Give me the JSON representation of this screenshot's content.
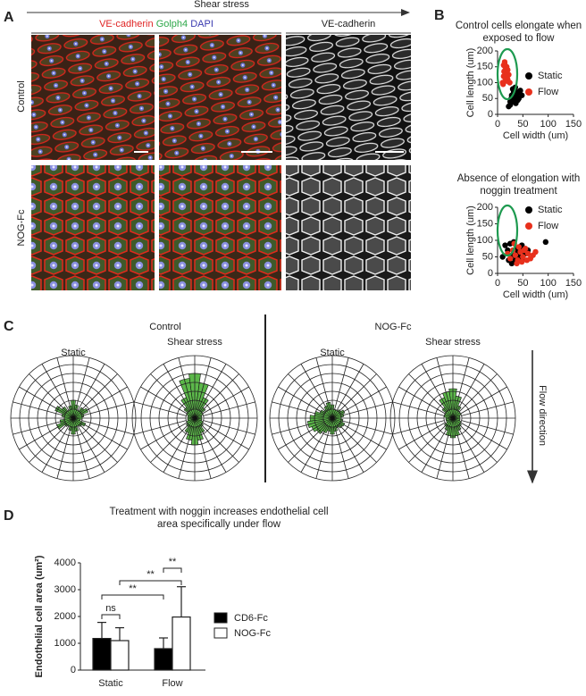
{
  "panel_labels": [
    "A",
    "B",
    "C",
    "D"
  ],
  "panel_a": {
    "header": "Shear stress",
    "stain_labels": [
      {
        "text": "VE-cadherin",
        "color": "#e02424"
      },
      {
        "text": "Golph4",
        "color": "#2ea84a"
      },
      {
        "text": "DAPI",
        "color": "#3a3ab0"
      }
    ],
    "gray_label": "VE-cadherin",
    "rows": [
      "Control",
      "NOG-Fc"
    ]
  },
  "panel_c": {
    "groups": [
      "Control",
      "NOG-Fc"
    ],
    "flow_label": "Flow direction"
  },
  "chart_data": [
    {
      "type": "rose",
      "title": "Static",
      "color": "#5cb84a",
      "values": [
        2,
        1.5,
        1,
        1.5,
        1.8,
        1.2,
        1,
        0.8,
        1.5,
        1.2,
        1,
        1.5,
        1.8,
        1.4,
        1,
        1.2,
        2,
        1.5,
        1,
        1.3,
        2.2,
        1.6,
        1,
        1.4
      ]
    },
    {
      "type": "rose",
      "title": "Shear stress",
      "color": "#5cb84a",
      "values": [
        5,
        4,
        2.5,
        1.5,
        1,
        0.8,
        0.8,
        0.8,
        1,
        1.2,
        1.8,
        2.5,
        3,
        2.5,
        1.8,
        1.2,
        1,
        0.8,
        0.8,
        0.8,
        1,
        1.5,
        2.5,
        4.5
      ]
    },
    {
      "type": "rose",
      "title": "Static",
      "color": "#5cb84a",
      "values": [
        1.5,
        1,
        1,
        1.2,
        1.5,
        1.3,
        1,
        1.2,
        1.5,
        1.4,
        1.2,
        1.5,
        1.8,
        1.5,
        1.8,
        2.2,
        2.5,
        2.8,
        2.5,
        2,
        1.5,
        1.2,
        1.5,
        1.8
      ]
    },
    {
      "type": "rose",
      "title": "Shear stress",
      "color": "#5cb84a",
      "values": [
        3.3,
        2.5,
        1.5,
        1,
        1,
        0.8,
        0.8,
        0.8,
        1,
        1.2,
        1.5,
        2,
        2.2,
        2,
        1.5,
        1.2,
        0.8,
        0.8,
        0.8,
        1,
        1,
        1.5,
        2.5,
        3
      ]
    },
    {
      "type": "scatter",
      "title": "Control cells elongate when exposed to flow",
      "x_label": "Cell width (um)",
      "y_label": "Cell length (um)",
      "xlim": [
        0,
        150
      ],
      "ylim": [
        0,
        200
      ],
      "xticks": [
        0,
        50,
        100,
        150
      ],
      "yticks": [
        0,
        50,
        100,
        150,
        200
      ],
      "legend": "right",
      "series": [
        {
          "name": "Static",
          "color": "#000000",
          "x": [
            25,
            30,
            35,
            40,
            28,
            33,
            45,
            38,
            22,
            30,
            42,
            36,
            27,
            48,
            32,
            40,
            35,
            25
          ],
          "values": [
            30,
            45,
            55,
            70,
            60,
            40,
            75,
            65,
            25,
            80,
            50,
            35,
            50,
            60,
            70,
            45,
            85,
            40
          ]
        },
        {
          "name": "Flow",
          "color": "#e8301c",
          "x": [
            10,
            12,
            15,
            18,
            20,
            14,
            16,
            22,
            11,
            13,
            17,
            19,
            15,
            12,
            20,
            24,
            18,
            14
          ],
          "values": [
            100,
            120,
            140,
            150,
            110,
            160,
            130,
            125,
            95,
            135,
            145,
            105,
            115,
            155,
            140,
            100,
            120,
            165
          ]
        }
      ]
    },
    {
      "type": "scatter",
      "title": "Absence of elongation with noggin treatment",
      "x_label": "Cell width (um)",
      "y_label": "Cell length (um)",
      "xlim": [
        0,
        150
      ],
      "ylim": [
        0,
        200
      ],
      "xticks": [
        0,
        50,
        100,
        150
      ],
      "yticks": [
        0,
        50,
        100,
        150,
        200
      ],
      "legend": "upper right",
      "series": [
        {
          "name": "Static",
          "color": "#000000",
          "x": [
            10,
            20,
            25,
            30,
            35,
            40,
            45,
            50,
            55,
            28,
            32,
            38,
            42,
            22,
            48,
            60,
            95,
            15
          ],
          "values": [
            50,
            70,
            90,
            55,
            40,
            65,
            80,
            45,
            60,
            30,
            95,
            75,
            50,
            40,
            85,
            70,
            95,
            85
          ]
        },
        {
          "name": "Flow",
          "color": "#e8301c",
          "x": [
            20,
            25,
            30,
            35,
            40,
            45,
            50,
            55,
            60,
            65,
            70,
            38,
            42,
            48,
            52,
            33,
            58,
            75
          ],
          "values": [
            60,
            45,
            70,
            55,
            40,
            65,
            50,
            75,
            60,
            45,
            55,
            30,
            80,
            35,
            70,
            90,
            40,
            65
          ]
        }
      ]
    },
    {
      "type": "bar",
      "title": "Treatment with noggin increases endothelial cell area specifically under flow",
      "y_label": "Endothelial cell area (um²)",
      "categories": [
        "Static",
        "Flow"
      ],
      "ylim": [
        0,
        4000
      ],
      "yticks": [
        0,
        1000,
        2000,
        3000,
        4000
      ],
      "series": [
        {
          "name": "CD6-Fc",
          "color": "#000000",
          "values": [
            1180,
            800
          ],
          "errors": [
            600,
            400
          ]
        },
        {
          "name": "NOG-Fc",
          "color": "#ffffff",
          "values": [
            1100,
            1980
          ],
          "errors": [
            480,
            1130
          ]
        }
      ],
      "annotations": [
        "ns",
        "**",
        "**",
        "**"
      ]
    }
  ]
}
